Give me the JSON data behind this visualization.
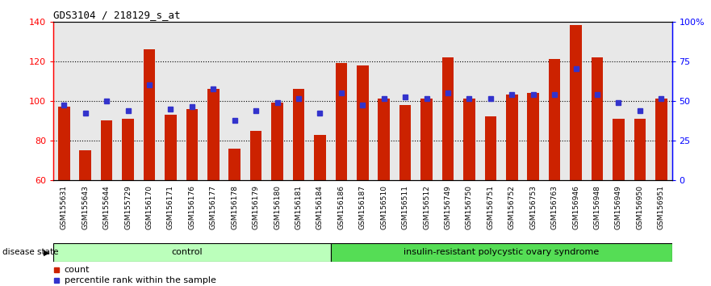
{
  "title": "GDS3104 / 218129_s_at",
  "samples": [
    "GSM155631",
    "GSM155643",
    "GSM155644",
    "GSM155729",
    "GSM156170",
    "GSM156171",
    "GSM156176",
    "GSM156177",
    "GSM156178",
    "GSM156179",
    "GSM156180",
    "GSM156181",
    "GSM156184",
    "GSM156186",
    "GSM156187",
    "GSM156510",
    "GSM156511",
    "GSM156512",
    "GSM156749",
    "GSM156750",
    "GSM156751",
    "GSM156752",
    "GSM156753",
    "GSM156763",
    "GSM156946",
    "GSM156948",
    "GSM156949",
    "GSM156950",
    "GSM156951"
  ],
  "bar_values": [
    97,
    75,
    90,
    91,
    126,
    93,
    96,
    106,
    76,
    85,
    99,
    106,
    83,
    119,
    118,
    101,
    98,
    101,
    122,
    101,
    92,
    103,
    104,
    121,
    138,
    122,
    91,
    91,
    101
  ],
  "dot_values_left_scale": [
    98,
    94,
    100,
    95,
    108,
    96,
    97,
    106,
    90,
    95,
    99,
    101,
    94,
    104,
    98,
    101,
    102,
    101,
    104,
    101,
    101,
    103,
    103,
    103,
    116,
    103,
    99,
    95,
    101
  ],
  "control_count": 13,
  "bar_color": "#CC2200",
  "dot_color": "#3333CC",
  "ylim_left": [
    60,
    140
  ],
  "ylim_right": [
    0,
    100
  ],
  "yticks_left": [
    60,
    80,
    100,
    120,
    140
  ],
  "yticks_right": [
    0,
    25,
    50,
    75,
    100
  ],
  "ytick_labels_right": [
    "0",
    "25",
    "50",
    "75",
    "100%"
  ],
  "grid_values": [
    80,
    100,
    120
  ],
  "control_label": "control",
  "disease_label": "insulin-resistant polycystic ovary syndrome",
  "disease_state_label": "disease state",
  "legend_bar_label": "count",
  "legend_dot_label": "percentile rank within the sample",
  "control_color": "#BBFFBB",
  "disease_color": "#55DD55",
  "bar_width": 0.55
}
